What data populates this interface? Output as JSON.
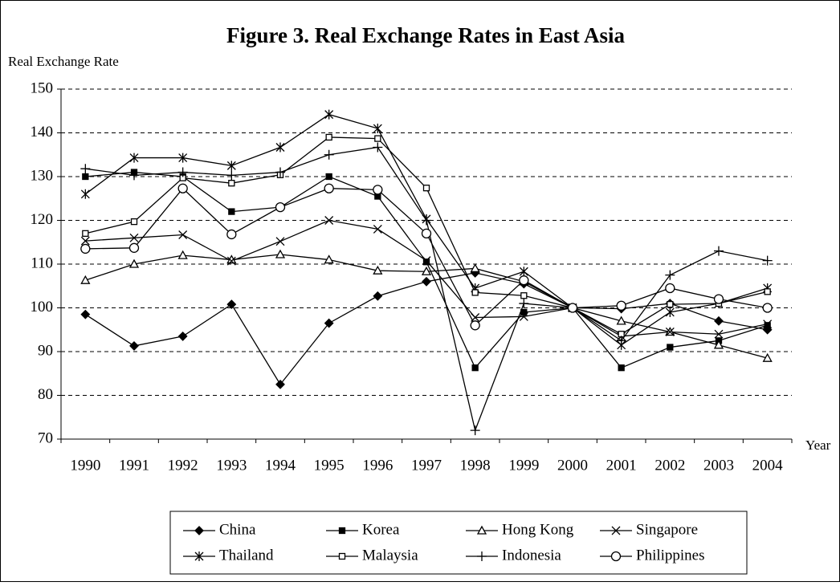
{
  "chart_data": {
    "type": "line",
    "title": "Figure 3. Real Exchange Rates in East Asia",
    "y_label": "Real Exchange Rate",
    "x_label": "Year",
    "categories": [
      "1990",
      "1991",
      "1992",
      "1993",
      "1994",
      "1995",
      "1996",
      "1997",
      "1998",
      "1999",
      "2000",
      "2001",
      "2002",
      "2003",
      "2004"
    ],
    "series": [
      {
        "name": "China",
        "color": "#000000",
        "marker": "diamond",
        "values": [
          98.5,
          91.3,
          93.5,
          100.8,
          82.5,
          96.5,
          102.7,
          106,
          108,
          105.5,
          100,
          99.8,
          101,
          97,
          95
        ]
      },
      {
        "name": "Korea",
        "color": "#000000",
        "marker": "square",
        "values": [
          130,
          131,
          130,
          122,
          123,
          130,
          125.5,
          110.5,
          86.3,
          99,
          100,
          86.3,
          91,
          92.5,
          96
        ]
      },
      {
        "name": "Hong Kong",
        "color": "#000000",
        "marker": "triangle-open",
        "values": [
          106.3,
          110,
          112,
          111,
          112.2,
          111,
          108.5,
          108.3,
          109,
          106,
          100,
          97,
          94.5,
          91.5,
          88.5
        ]
      },
      {
        "name": "Singapore",
        "color": "#000000",
        "marker": "x",
        "values": [
          115.3,
          116,
          116.7,
          110.7,
          115.2,
          120,
          118,
          110.8,
          97.8,
          98,
          100,
          93.5,
          94.5,
          94,
          96.3
        ]
      },
      {
        "name": "Thailand",
        "color": "#000000",
        "marker": "asterisk",
        "values": [
          126,
          134.3,
          134.3,
          132.5,
          136.7,
          144.2,
          141,
          120.3,
          104.5,
          108.3,
          100,
          91.5,
          99,
          101,
          104.5
        ]
      },
      {
        "name": "Malaysia",
        "color": "#000000",
        "marker": "square-open",
        "values": [
          117,
          119.7,
          129.7,
          128.5,
          130.4,
          139,
          138.7,
          127.4,
          103.5,
          102.8,
          100,
          94,
          100.8,
          101,
          103.7
        ]
      },
      {
        "name": "Indonesia",
        "color": "#000000",
        "marker": "plus",
        "values": [
          131.8,
          130.3,
          131,
          130.3,
          131,
          135,
          136.7,
          120,
          72,
          101,
          100,
          92.5,
          107.5,
          113,
          110.8
        ]
      },
      {
        "name": "Philippines",
        "color": "#000000",
        "marker": "circle-open",
        "values": [
          113.5,
          113.7,
          127.3,
          116.8,
          123,
          127.3,
          127,
          117,
          96,
          106.3,
          100,
          100.5,
          104.5,
          102,
          100
        ]
      }
    ],
    "ylim": [
      70,
      150
    ],
    "yticks": [
      70,
      80,
      90,
      100,
      110,
      120,
      130,
      140,
      150
    ],
    "grid": true,
    "legend_position": "bottom"
  }
}
